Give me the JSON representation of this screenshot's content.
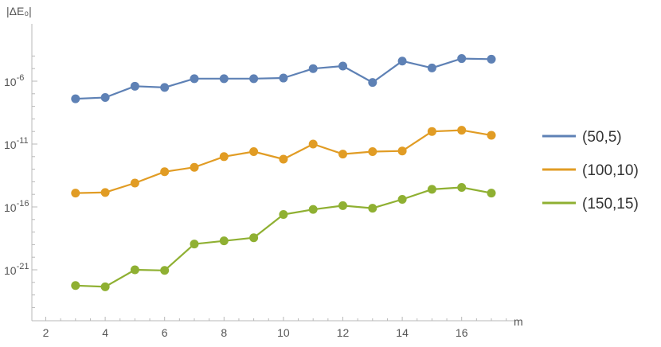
{
  "chart_data": {
    "type": "line",
    "ylabel": "|ΔE₀|",
    "xlabel": "m",
    "yscale": "log",
    "xlim": [
      2,
      17.8
    ],
    "ylim": [
      -24,
      -4
    ],
    "x_ticks": [
      2,
      4,
      6,
      8,
      10,
      12,
      14,
      16
    ],
    "y_ticks": [
      {
        "exp": -6,
        "label": "10",
        "sup": "-6"
      },
      {
        "exp": -11,
        "label": "10",
        "sup": "-11"
      },
      {
        "exp": -16,
        "label": "10",
        "sup": "-16"
      },
      {
        "exp": -21,
        "label": "10",
        "sup": "-21"
      }
    ],
    "x": [
      3,
      4,
      5,
      6,
      7,
      8,
      9,
      10,
      11,
      12,
      13,
      14,
      15,
      16,
      17
    ],
    "series": [
      {
        "name": "(50,5)",
        "color": "#5e81b5",
        "log10_values": [
          -7.4,
          -7.3,
          -6.4,
          -6.5,
          -5.8,
          -5.8,
          -5.8,
          -5.75,
          -5.0,
          -4.8,
          -6.1,
          -4.4,
          -4.95,
          -4.2,
          -4.25
        ]
      },
      {
        "name": "(100,10)",
        "color": "#e19c24",
        "log10_values": [
          -14.9,
          -14.85,
          -14.1,
          -13.2,
          -12.85,
          -12.0,
          -11.6,
          -12.2,
          -11.0,
          -11.8,
          -11.6,
          -11.55,
          -10.0,
          -9.9,
          -10.3
        ]
      },
      {
        "name": "(150,15)",
        "color": "#8fb032",
        "log10_values": [
          -22.25,
          -22.35,
          -21.0,
          -21.05,
          -18.95,
          -18.7,
          -18.45,
          -16.6,
          -16.2,
          -15.9,
          -16.1,
          -15.4,
          -14.6,
          -14.45,
          -14.9
        ]
      }
    ],
    "legend_position": "right"
  }
}
